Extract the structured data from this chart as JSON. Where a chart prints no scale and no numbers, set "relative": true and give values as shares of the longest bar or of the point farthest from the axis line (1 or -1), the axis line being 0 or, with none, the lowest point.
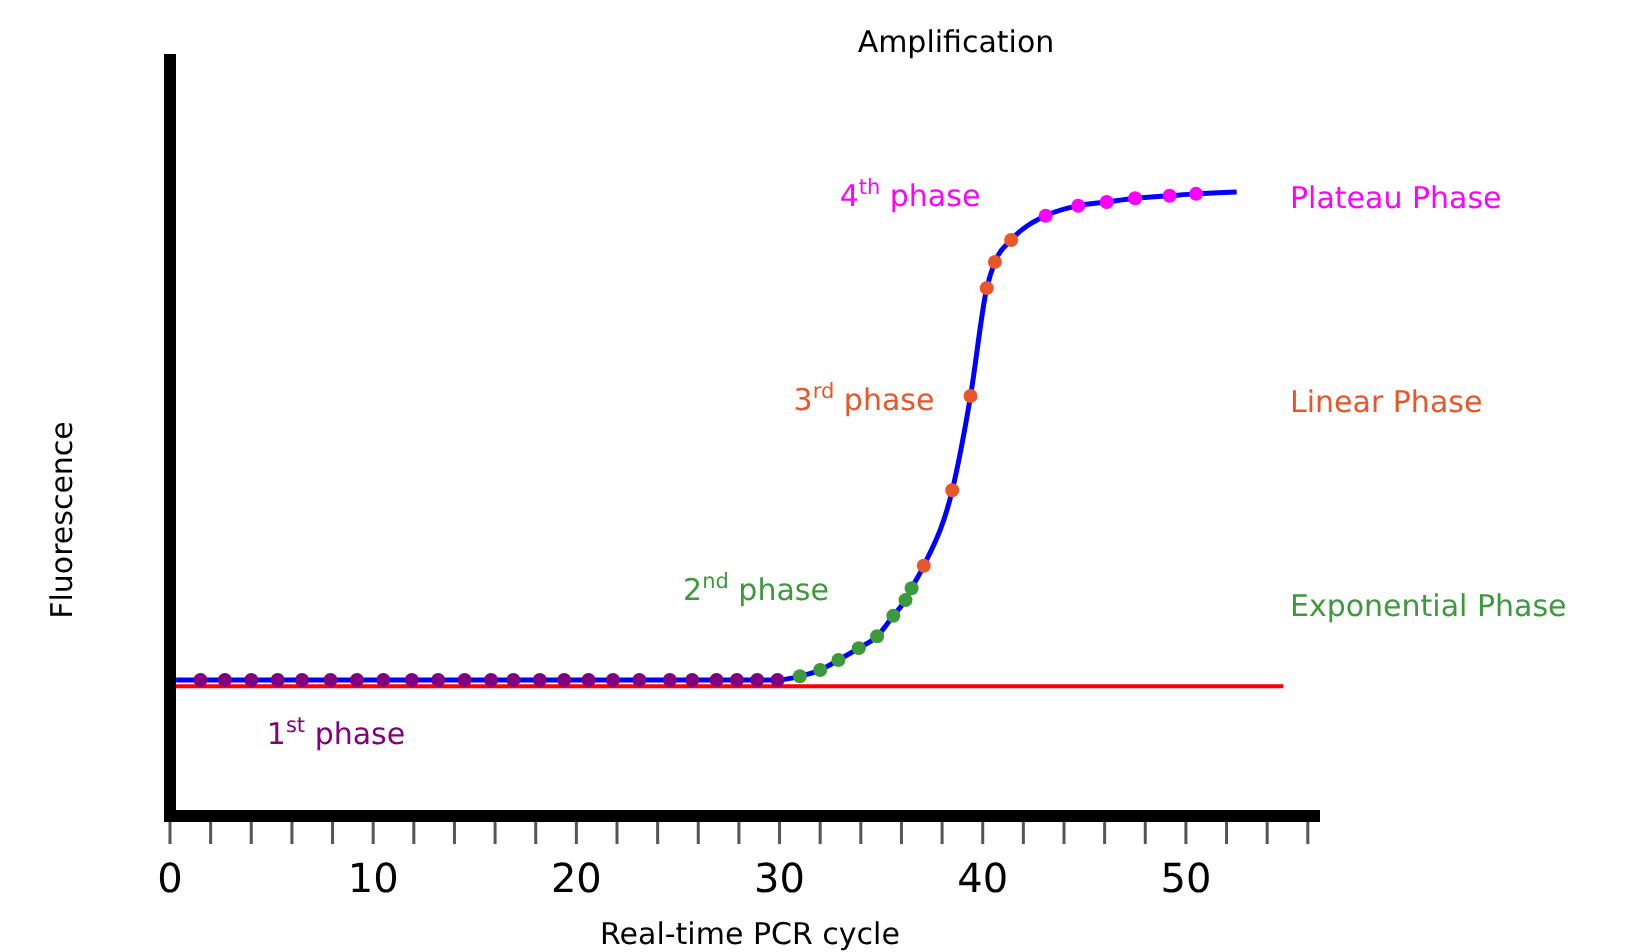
{
  "chart_data": {
    "type": "line",
    "title": "Amplification",
    "xlabel": "Real-time PCR cycle",
    "ylabel": "Fluorescence",
    "relative": true,
    "xlim": [
      0,
      56.6
    ],
    "xticks": [
      0,
      {
        "value": 2,
        "label": null
      },
      {
        "value": 4,
        "label": null
      },
      {
        "value": 6,
        "label": null
      },
      {
        "value": 8,
        "label": null
      },
      10,
      {
        "value": 12,
        "label": null
      },
      {
        "value": 14,
        "label": null
      },
      {
        "value": 16,
        "label": null
      },
      {
        "value": 18,
        "label": null
      },
      20,
      {
        "value": 22,
        "label": null
      },
      {
        "value": 24,
        "label": null
      },
      {
        "value": 26,
        "label": null
      },
      {
        "value": 28,
        "label": null
      },
      30,
      {
        "value": 32,
        "label": null
      },
      {
        "value": 34,
        "label": null
      },
      {
        "value": 36,
        "label": null
      },
      {
        "value": 38,
        "label": null
      },
      40,
      {
        "value": 42,
        "label": null
      },
      {
        "value": 44,
        "label": null
      },
      {
        "value": 46,
        "label": null
      },
      {
        "value": 48,
        "label": null
      },
      50,
      {
        "value": 52,
        "label": null
      },
      {
        "value": 54,
        "label": null
      },
      {
        "value": 56,
        "label": null
      }
    ],
    "legend": "left",
    "series": [
      {
        "type": "line",
        "color": "#0000ff",
        "marker": "none",
        "x": [
          0.3,
          1.5,
          5.3,
          10.5,
          15.8,
          20.6,
          25.7,
          29.9,
          31.0,
          32.0,
          32.9,
          33.9,
          34.8,
          35.6,
          36.2,
          36.5,
          37.1,
          38.5,
          39.4,
          40.2,
          40.6,
          41.4,
          43.1,
          44.7,
          46.1,
          47.5,
          49.2,
          50.5,
          52.5
        ],
        "values": [
          0.218,
          0.218,
          0.218,
          0.218,
          0.218,
          0.218,
          0.218,
          0.218,
          0.224,
          0.234,
          0.25,
          0.269,
          0.288,
          0.321,
          0.346,
          0.365,
          0.401,
          0.522,
          0.673,
          0.846,
          0.888,
          0.923,
          0.962,
          0.978,
          0.984,
          0.99,
          0.994,
          0.997,
          1
        ]
      },
      {
        "type": "scatter",
        "name": "1$^{st}$ phase",
        "color": "#800080",
        "marker": "circle",
        "x": [
          1.5,
          2.7,
          4.0,
          5.3,
          6.5,
          7.9,
          9.2,
          10.5,
          11.9,
          13.2,
          14.5,
          15.8,
          16.9,
          18.2,
          19.4,
          20.6,
          21.8,
          23.1,
          24.6,
          25.7,
          26.9,
          27.9,
          28.9,
          29.9
        ],
        "values": [
          0.218,
          0.218,
          0.218,
          0.218,
          0.218,
          0.218,
          0.218,
          0.218,
          0.218,
          0.218,
          0.218,
          0.218,
          0.218,
          0.218,
          0.218,
          0.218,
          0.218,
          0.218,
          0.218,
          0.218,
          0.218,
          0.218,
          0.218,
          0.218
        ]
      },
      {
        "type": "scatter",
        "name": "2$^{nd}$ phase",
        "color": "#3c9a3c",
        "marker": "circle",
        "x": [
          31.0,
          32.0,
          32.9,
          33.9,
          34.8,
          35.6,
          36.2,
          36.5
        ],
        "values": [
          0.224,
          0.234,
          0.25,
          0.269,
          0.288,
          0.321,
          0.346,
          0.365
        ]
      },
      {
        "type": "scatter",
        "name": "3$^{rd}$ phase",
        "color": "#e8562a",
        "marker": "circle",
        "x": [
          37.1,
          38.5,
          39.4,
          40.2,
          40.6,
          41.4
        ],
        "values": [
          0.401,
          0.522,
          0.673,
          0.846,
          0.888,
          0.923
        ]
      },
      {
        "type": "scatter",
        "name": "4$^{th}$ phase",
        "color": "#ff00ff",
        "marker": "circle",
        "x": [
          43.1,
          44.7,
          46.1,
          47.5,
          49.2,
          50.5
        ],
        "values": [
          0.962,
          0.978,
          0.984,
          0.99,
          0.994,
          0.997
        ]
      }
    ],
    "annotations": [
      "Plateau Phase",
      "Linear Phase",
      "Exponential Phase"
    ],
    "ref_lines": [
      {
        "axis": "y",
        "value": 0.208,
        "color": "#ff0000"
      }
    ]
  }
}
